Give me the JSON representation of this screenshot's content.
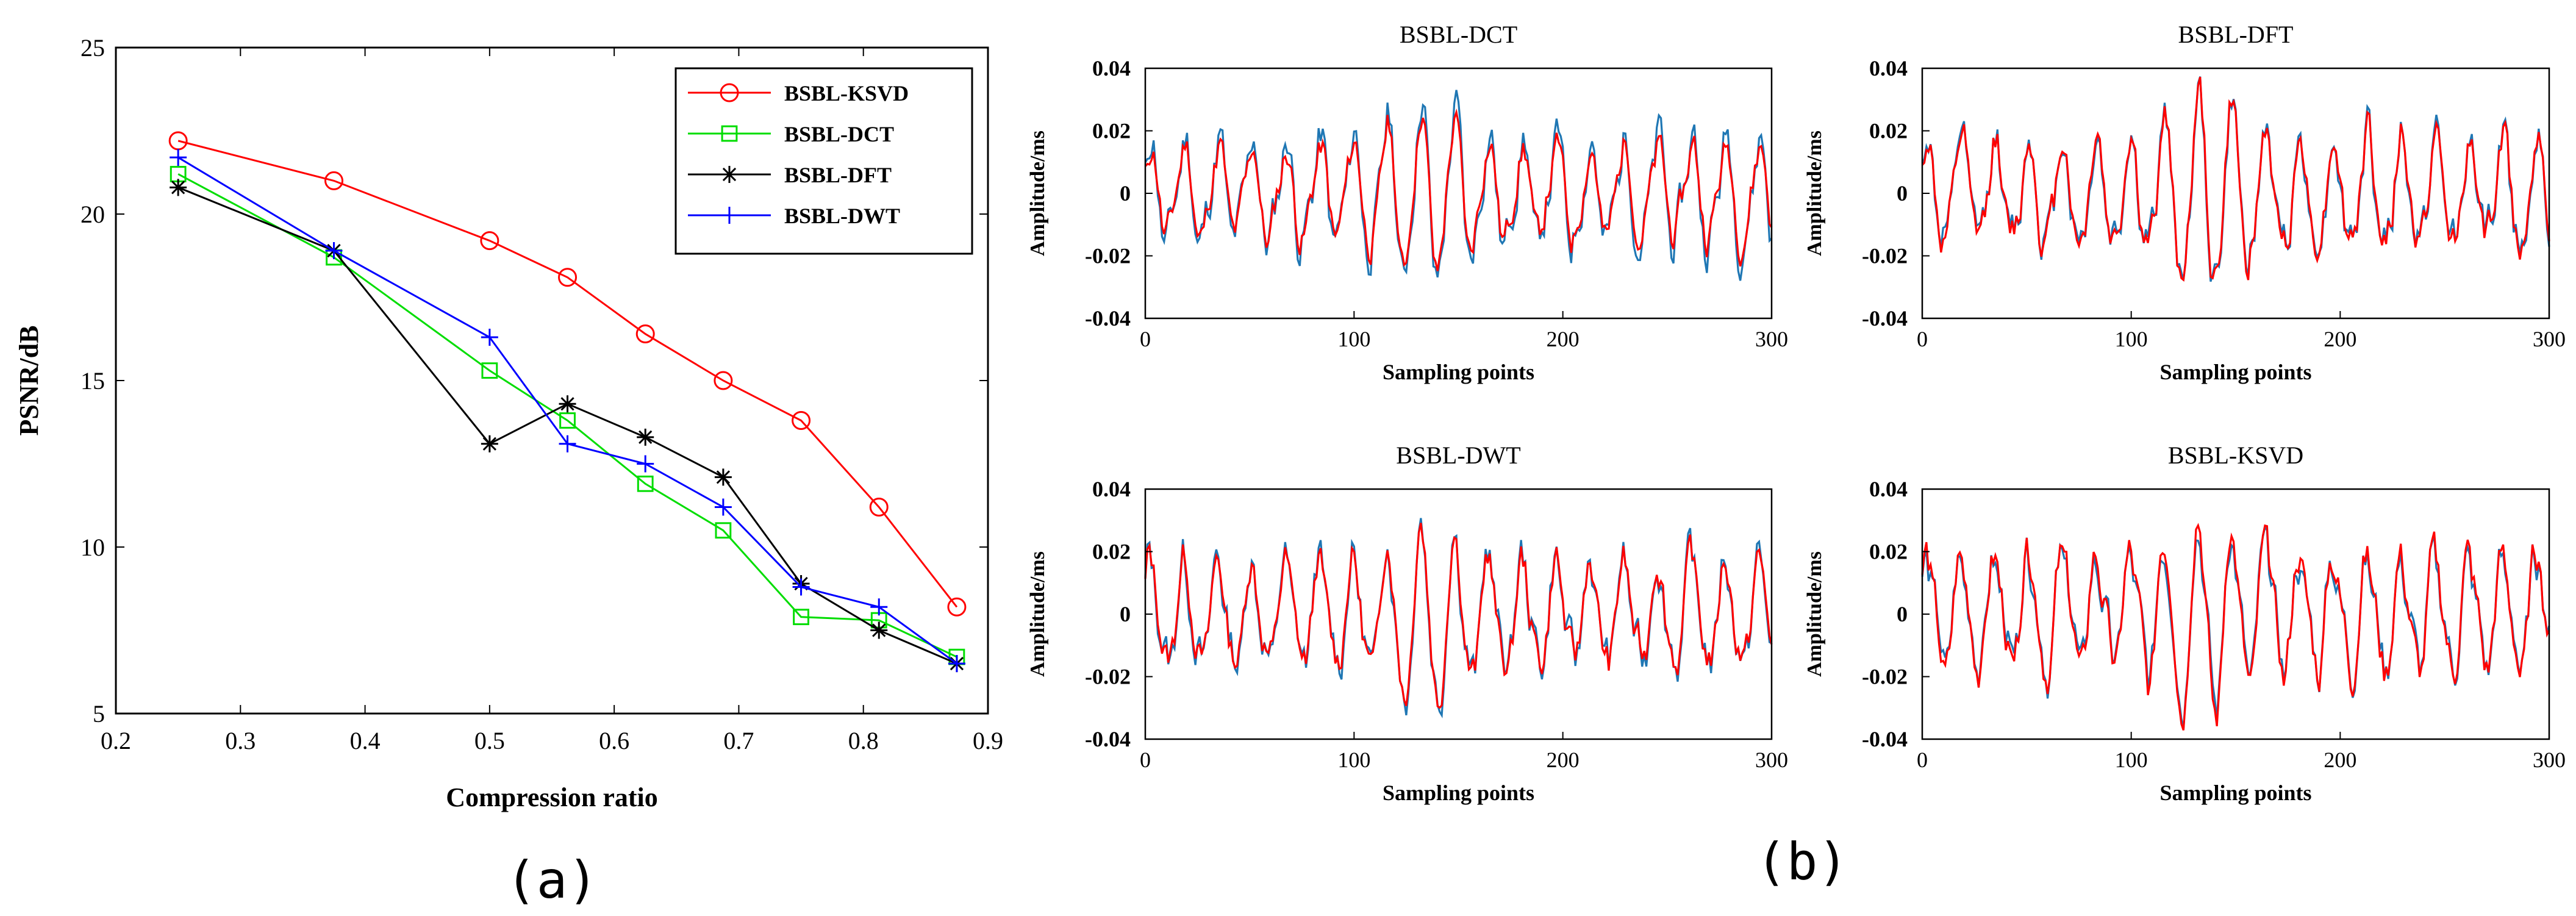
{
  "chart_data": [
    {
      "id": "panel-a",
      "type": "line",
      "xlabel": "Compression ratio",
      "ylabel": "PSNR/dB",
      "xlim": [
        0.2,
        0.9
      ],
      "ylim": [
        5,
        25
      ],
      "xticks": [
        0.2,
        0.3,
        0.4,
        0.5,
        0.6,
        0.7,
        0.8,
        0.9
      ],
      "yticks": [
        5,
        10,
        15,
        20,
        25
      ],
      "x": [
        0.25,
        0.375,
        0.5,
        0.5625,
        0.625,
        0.6875,
        0.75,
        0.8125,
        0.875
      ],
      "legend_position": "top-right",
      "series": [
        {
          "name": "BSBL-KSVD",
          "color": "#ff0000",
          "marker": "circle",
          "values": [
            22.2,
            21.0,
            19.2,
            18.1,
            16.4,
            15.0,
            13.8,
            11.2,
            8.2
          ]
        },
        {
          "name": "BSBL-DCT",
          "color": "#00dd00",
          "marker": "square",
          "values": [
            21.2,
            18.7,
            15.3,
            13.8,
            11.9,
            10.5,
            7.9,
            7.8,
            6.7
          ]
        },
        {
          "name": "BSBL-DFT",
          "color": "#000000",
          "marker": "asterisk",
          "values": [
            20.8,
            18.9,
            13.1,
            14.3,
            13.3,
            12.1,
            8.9,
            7.5,
            6.5
          ]
        },
        {
          "name": "BSBL-DWT",
          "color": "#0000ff",
          "marker": "plus",
          "values": [
            21.7,
            18.9,
            16.3,
            13.1,
            12.5,
            11.2,
            8.8,
            8.2,
            6.5
          ]
        }
      ],
      "caption": "(a)"
    },
    {
      "id": "panel-b",
      "type": "line",
      "caption": "(b)",
      "xlabel": "Sampling points",
      "ylabel": "Amplitude/ms",
      "xlim": [
        0,
        300
      ],
      "ylim": [
        -0.04,
        0.04
      ],
      "xticks": [
        0,
        100,
        200,
        300
      ],
      "yticks": [
        -0.04,
        -0.02,
        0,
        0.02,
        0.04
      ],
      "ytick_labels": [
        "-0.04",
        "-0.02",
        "0",
        "0.02",
        "0.04"
      ],
      "series_colors": {
        "original": "#1f77b4",
        "reconstructed": "#ff0000"
      },
      "subplots": [
        {
          "title": "BSBL-DCT",
          "original_seed": 11,
          "reconstructed_seed": 21,
          "recon_scale": 0.7
        },
        {
          "title": "BSBL-DFT",
          "original_seed": 12,
          "reconstructed_seed": 22,
          "recon_scale": 0.85
        },
        {
          "title": "BSBL-DWT",
          "original_seed": 13,
          "reconstructed_seed": 23,
          "recon_scale": 0.8
        },
        {
          "title": "BSBL-KSVD",
          "original_seed": 14,
          "reconstructed_seed": 24,
          "recon_scale": 0.92
        }
      ]
    }
  ]
}
